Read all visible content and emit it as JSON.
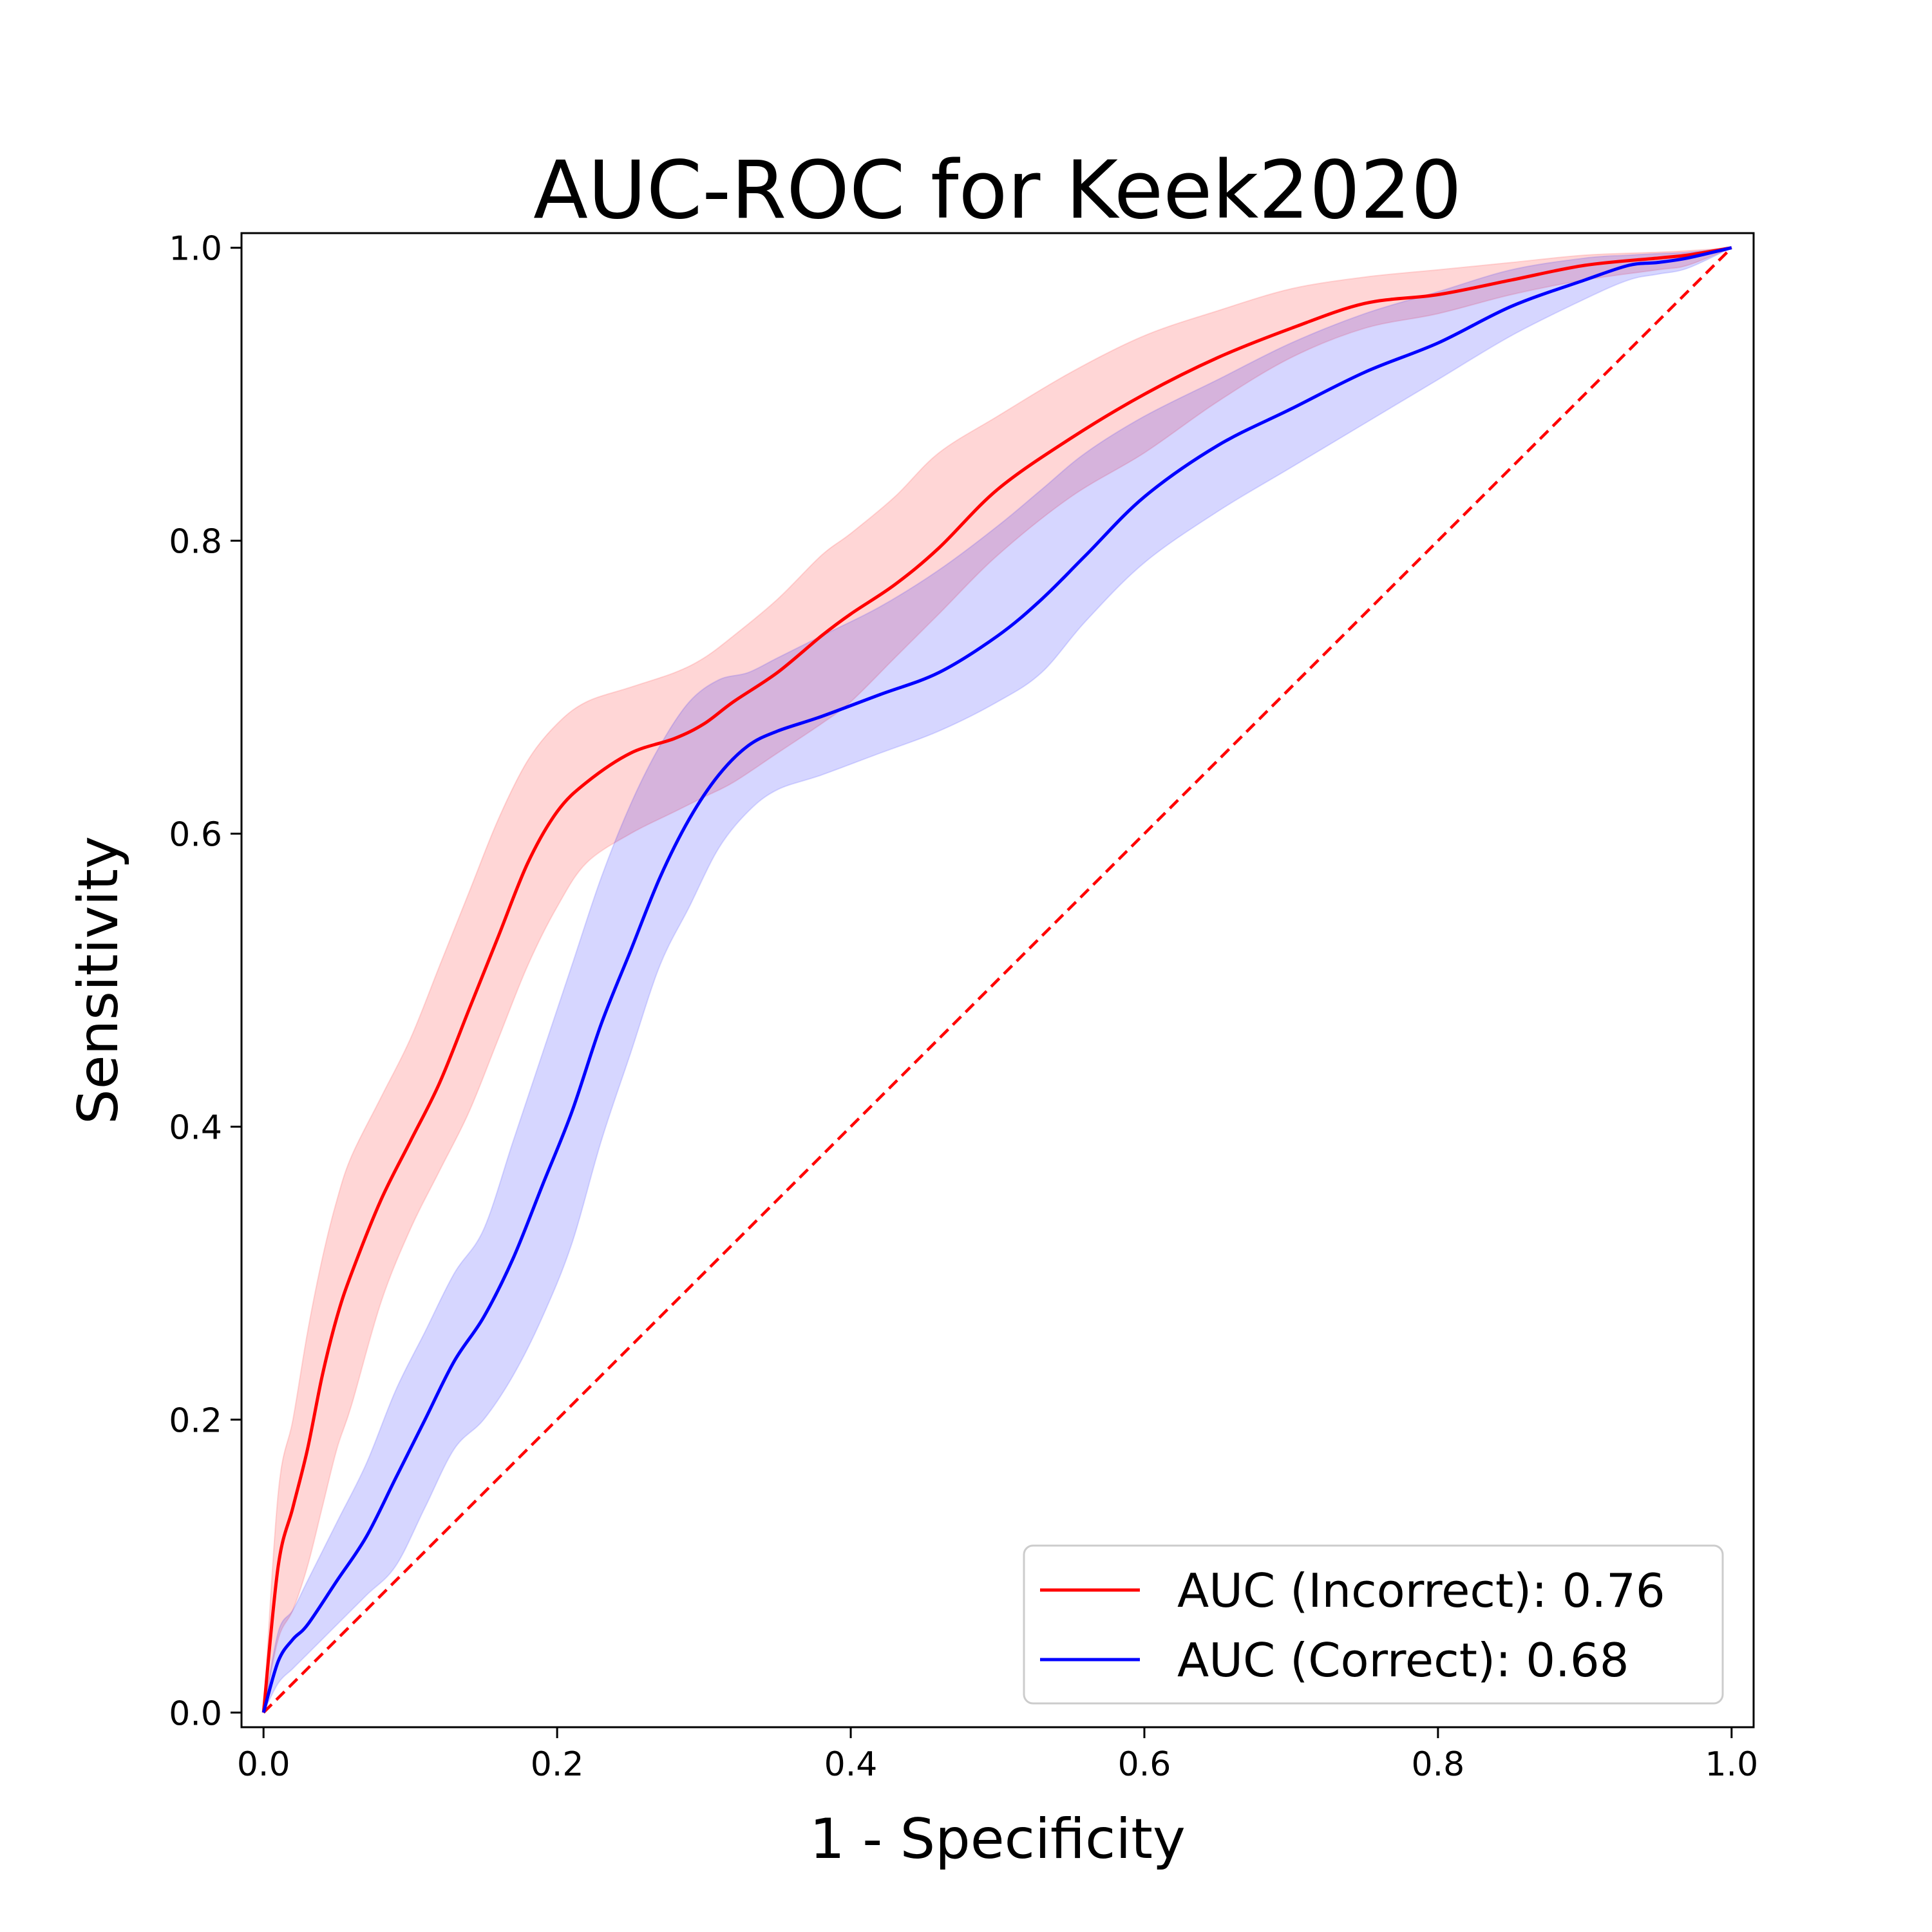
{
  "chart_data": {
    "type": "line",
    "title": "AUC-ROC for Keek2020",
    "xlabel": "1 - Specificity",
    "ylabel": "Sensitivity",
    "xlim": [
      -0.015,
      1.015
    ],
    "ylim": [
      -0.01,
      1.01
    ],
    "x_ticks": [
      "0.0",
      "0.2",
      "0.4",
      "0.6",
      "0.8",
      "1.0"
    ],
    "y_ticks": [
      "0.0",
      "0.2",
      "0.4",
      "0.6",
      "0.8",
      "1.0"
    ],
    "grid": false,
    "legend_position": "lower-right",
    "colors": {
      "incorrect": "#ff0000",
      "correct": "#0000ff",
      "diagonal": "#ff0000"
    },
    "series": [
      {
        "name": "AUC  (Incorrect): 0.76",
        "color": "#ff0000",
        "x": [
          0.0,
          0.01,
          0.02,
          0.03,
          0.04,
          0.05,
          0.06,
          0.08,
          0.1,
          0.12,
          0.14,
          0.16,
          0.18,
          0.2,
          0.22,
          0.25,
          0.28,
          0.3,
          0.32,
          0.35,
          0.38,
          0.4,
          0.43,
          0.46,
          0.5,
          0.55,
          0.6,
          0.65,
          0.7,
          0.75,
          0.8,
          0.85,
          0.9,
          0.95,
          0.97,
          1.0
        ],
        "y": [
          0.0,
          0.1,
          0.14,
          0.18,
          0.23,
          0.27,
          0.3,
          0.35,
          0.39,
          0.43,
          0.48,
          0.53,
          0.58,
          0.615,
          0.635,
          0.655,
          0.665,
          0.675,
          0.69,
          0.71,
          0.735,
          0.75,
          0.77,
          0.795,
          0.835,
          0.87,
          0.9,
          0.925,
          0.945,
          0.962,
          0.968,
          0.978,
          0.988,
          0.993,
          0.995,
          1.0
        ],
        "lower": [
          0.0,
          0.05,
          0.07,
          0.1,
          0.14,
          0.18,
          0.21,
          0.28,
          0.33,
          0.37,
          0.41,
          0.46,
          0.51,
          0.55,
          0.58,
          0.6,
          0.615,
          0.625,
          0.635,
          0.655,
          0.675,
          0.69,
          0.72,
          0.75,
          0.79,
          0.83,
          0.86,
          0.895,
          0.925,
          0.945,
          0.955,
          0.968,
          0.978,
          0.985,
          0.988,
          1.0
        ],
        "upper": [
          0.0,
          0.15,
          0.2,
          0.26,
          0.31,
          0.35,
          0.38,
          0.42,
          0.46,
          0.51,
          0.56,
          0.61,
          0.65,
          0.675,
          0.69,
          0.7,
          0.71,
          0.72,
          0.735,
          0.76,
          0.79,
          0.805,
          0.83,
          0.86,
          0.885,
          0.915,
          0.94,
          0.957,
          0.972,
          0.98,
          0.985,
          0.99,
          0.995,
          0.997,
          0.998,
          1.0
        ]
      },
      {
        "name": "AUC  (Correct): 0.68",
        "color": "#0000ff",
        "x": [
          0.0,
          0.01,
          0.02,
          0.03,
          0.05,
          0.07,
          0.09,
          0.11,
          0.13,
          0.15,
          0.17,
          0.19,
          0.21,
          0.23,
          0.25,
          0.27,
          0.29,
          0.31,
          0.33,
          0.35,
          0.38,
          0.42,
          0.46,
          0.5,
          0.53,
          0.56,
          0.6,
          0.65,
          0.7,
          0.75,
          0.8,
          0.85,
          0.9,
          0.93,
          0.95,
          0.97,
          1.0
        ],
        "y": [
          0.0,
          0.035,
          0.05,
          0.06,
          0.09,
          0.12,
          0.16,
          0.2,
          0.24,
          0.27,
          0.31,
          0.36,
          0.41,
          0.47,
          0.52,
          0.57,
          0.61,
          0.64,
          0.66,
          0.67,
          0.68,
          0.695,
          0.71,
          0.735,
          0.76,
          0.79,
          0.83,
          0.865,
          0.89,
          0.915,
          0.935,
          0.96,
          0.978,
          0.988,
          0.99,
          0.993,
          1.0
        ],
        "lower": [
          0.0,
          0.02,
          0.03,
          0.04,
          0.06,
          0.08,
          0.1,
          0.14,
          0.18,
          0.2,
          0.23,
          0.27,
          0.32,
          0.39,
          0.45,
          0.51,
          0.55,
          0.59,
          0.615,
          0.63,
          0.64,
          0.655,
          0.67,
          0.69,
          0.71,
          0.745,
          0.785,
          0.82,
          0.85,
          0.88,
          0.91,
          0.94,
          0.965,
          0.978,
          0.982,
          0.986,
          1.0
        ],
        "upper": [
          0.0,
          0.055,
          0.07,
          0.09,
          0.13,
          0.17,
          0.22,
          0.26,
          0.3,
          0.33,
          0.39,
          0.45,
          0.51,
          0.57,
          0.62,
          0.66,
          0.69,
          0.705,
          0.71,
          0.72,
          0.735,
          0.755,
          0.78,
          0.81,
          0.835,
          0.86,
          0.885,
          0.91,
          0.935,
          0.955,
          0.97,
          0.985,
          0.993,
          0.995,
          0.996,
          0.997,
          1.0
        ]
      }
    ],
    "reference_line": {
      "x": [
        0,
        1
      ],
      "y": [
        0,
        1
      ],
      "style": "dashed",
      "color": "#ff0000"
    }
  }
}
